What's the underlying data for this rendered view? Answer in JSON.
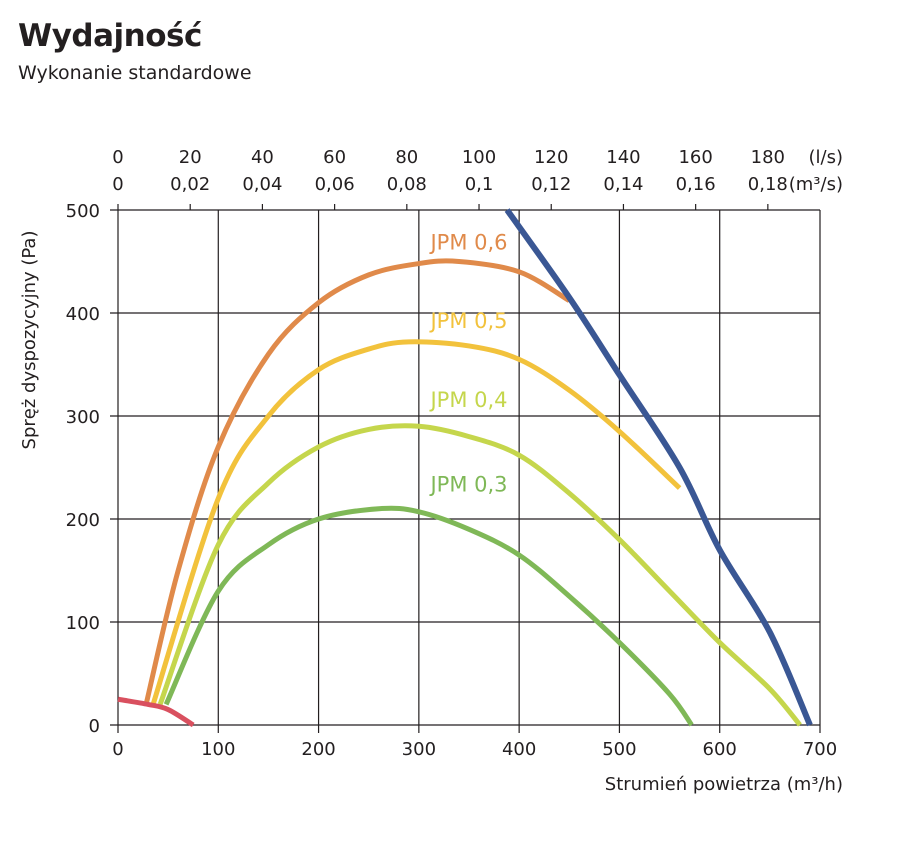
{
  "title": "Wydajność",
  "subtitle": "Wykonanie standardowe",
  "chart_data": {
    "type": "line",
    "xlabel": "Strumień powietrza (m³/h)",
    "ylabel": "Spręż dyspozycyjny (Pa)",
    "xlim": [
      0,
      700
    ],
    "ylim": [
      0,
      500
    ],
    "grid": true,
    "x_ticks": [
      "0",
      "100",
      "200",
      "300",
      "400",
      "500",
      "600",
      "700"
    ],
    "y_ticks": [
      "0",
      "100",
      "200",
      "300",
      "400",
      "500"
    ],
    "top_axis": {
      "ls_ticks": [
        "0",
        "20",
        "40",
        "60",
        "80",
        "100",
        "120",
        "140",
        "160",
        "180"
      ],
      "ls_unit": "(l/s)",
      "m3s_ticks": [
        "0",
        "0,02",
        "0,04",
        "0,06",
        "0,08",
        "0,1",
        "0,12",
        "0,14",
        "0,16",
        "0,18"
      ],
      "m3s_unit": "(m³/s)"
    },
    "series": [
      {
        "name": "JPM 0,6",
        "color": "#E08A4A",
        "points": [
          [
            28,
            20
          ],
          [
            60,
            150
          ],
          [
            100,
            270
          ],
          [
            150,
            360
          ],
          [
            200,
            410
          ],
          [
            250,
            437
          ],
          [
            300,
            448
          ],
          [
            340,
            450
          ],
          [
            400,
            440
          ],
          [
            450,
            412
          ]
        ]
      },
      {
        "name": "JPM 0,5",
        "color": "#F2C23C",
        "points": [
          [
            35,
            20
          ],
          [
            100,
            220
          ],
          [
            150,
            300
          ],
          [
            200,
            345
          ],
          [
            250,
            365
          ],
          [
            290,
            372
          ],
          [
            350,
            368
          ],
          [
            400,
            355
          ],
          [
            450,
            325
          ],
          [
            500,
            285
          ],
          [
            560,
            230
          ]
        ]
      },
      {
        "name": "JPM 0,4",
        "color": "#C5D64C",
        "points": [
          [
            42,
            20
          ],
          [
            100,
            175
          ],
          [
            150,
            235
          ],
          [
            200,
            270
          ],
          [
            250,
            287
          ],
          [
            300,
            290
          ],
          [
            350,
            280
          ],
          [
            400,
            262
          ],
          [
            450,
            225
          ],
          [
            500,
            180
          ],
          [
            550,
            130
          ],
          [
            600,
            80
          ],
          [
            650,
            35
          ],
          [
            680,
            0
          ]
        ]
      },
      {
        "name": "JPM 0,3",
        "color": "#7FB857",
        "points": [
          [
            48,
            20
          ],
          [
            100,
            130
          ],
          [
            150,
            175
          ],
          [
            200,
            200
          ],
          [
            260,
            210
          ],
          [
            300,
            207
          ],
          [
            350,
            190
          ],
          [
            400,
            165
          ],
          [
            450,
            125
          ],
          [
            500,
            80
          ],
          [
            550,
            30
          ],
          [
            572,
            0
          ]
        ]
      },
      {
        "color": "#3A5794",
        "points": [
          [
            388,
            500
          ],
          [
            450,
            415
          ],
          [
            500,
            340
          ],
          [
            560,
            250
          ],
          [
            600,
            170
          ],
          [
            650,
            90
          ],
          [
            690,
            0
          ]
        ]
      },
      {
        "color": "#D9505F",
        "points": [
          [
            0,
            25
          ],
          [
            30,
            20
          ],
          [
            50,
            15
          ],
          [
            75,
            0
          ]
        ]
      }
    ]
  }
}
